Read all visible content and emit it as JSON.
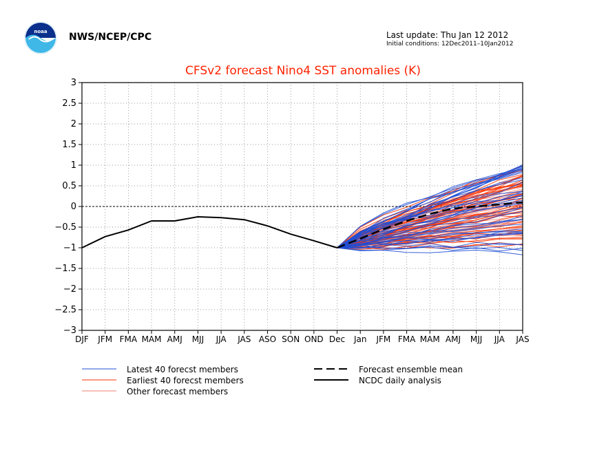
{
  "header": {
    "org": "NWS/NCEP/CPC",
    "last_update": "Last update: Thu Jan 12 2012",
    "initial_conditions": "Initial conditions: 12Dec2011–10Jan2012",
    "logo_icon": "noaa-logo-icon"
  },
  "chart_data": {
    "type": "line",
    "title": "CFSv2 forecast Nino4 SST anomalies (K)",
    "xlabel": "",
    "ylabel": "",
    "categories": [
      "DJF",
      "JFM",
      "FMA",
      "MAM",
      "AMJ",
      "MJJ",
      "JJA",
      "JAS",
      "ASO",
      "SON",
      "OND",
      "Dec",
      "Jan",
      "JFM",
      "FMA",
      "MAM",
      "AMJ",
      "MJJ",
      "JJA",
      "JAS"
    ],
    "ylim": [
      -3,
      3
    ],
    "yticks": [
      "3",
      "2.5",
      "2",
      "1.5",
      "1",
      "0.5",
      "0",
      "−0.5",
      "−1",
      "−1.5",
      "−2",
      "−2.5",
      "−3"
    ],
    "grid": true,
    "zero_line": true,
    "series": [
      {
        "name": "NCDC daily analysis",
        "color": "#000000",
        "style": "solid",
        "values": [
          -1.0,
          -0.73,
          -0.57,
          -0.35,
          -0.35,
          -0.25,
          -0.27,
          -0.32,
          -0.47,
          -0.67,
          -0.83,
          -1.0,
          null,
          null,
          null,
          null,
          null,
          null,
          null,
          null
        ]
      },
      {
        "name": "Forecast ensemble mean",
        "color": "#000000",
        "style": "dashed",
        "values": [
          null,
          null,
          null,
          null,
          null,
          null,
          null,
          null,
          null,
          null,
          null,
          -1.0,
          -0.78,
          -0.55,
          -0.35,
          -0.18,
          -0.05,
          0.0,
          0.05,
          0.1
        ]
      },
      {
        "name": "Latest 40 forecst members",
        "color": "#1f4fd6",
        "style": "thin",
        "count": 40,
        "end_range": [
          -1.15,
          1.1
        ]
      },
      {
        "name": "Earliest 40 forecst members",
        "color": "#ff3300",
        "style": "thin",
        "count": 40,
        "end_range": [
          -0.95,
          1.0
        ]
      },
      {
        "name": "Other forecast members",
        "color": "#f08070",
        "style": "thin",
        "count": 40,
        "end_range": [
          -0.8,
          0.8
        ]
      }
    ],
    "legend": {
      "placement": "bottom",
      "items": [
        {
          "label": "Latest 40 forecst members",
          "color": "#1f4fd6",
          "style": "thin"
        },
        {
          "label": "Earliest 40 forecst members",
          "color": "#ff3300",
          "style": "thin"
        },
        {
          "label": "Other forecast members",
          "color": "#f08070",
          "style": "thin"
        },
        {
          "label": "Forecast ensemble mean",
          "color": "#000000",
          "style": "dashed"
        },
        {
          "label": "NCDC daily analysis",
          "color": "#000000",
          "style": "solid"
        }
      ]
    },
    "title_color": "#ff2200"
  }
}
